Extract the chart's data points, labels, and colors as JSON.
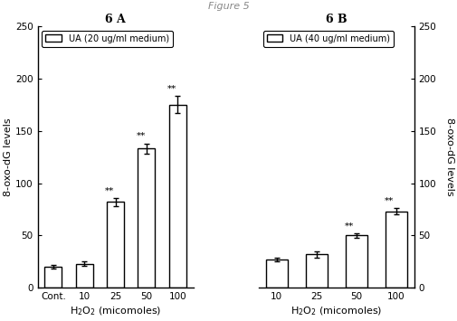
{
  "panel_A": {
    "title": "6 A",
    "legend_label": "UA (20 ug/ml medium)",
    "categories": [
      "Cont.",
      "10",
      "25",
      "50",
      "100"
    ],
    "values": [
      20,
      23,
      82,
      133,
      175
    ],
    "errors": [
      2,
      2,
      4,
      5,
      8
    ],
    "annotations": [
      "",
      "",
      "**",
      "**",
      "**"
    ],
    "ann_offsets": [
      0,
      0,
      2,
      2,
      2
    ],
    "xlabel": "H$_2$O$_2$ (micomoles)",
    "ylabel": "8-oxo-dG levels",
    "ylim": [
      0,
      250
    ],
    "yticks": [
      0,
      50,
      100,
      150,
      200,
      250
    ]
  },
  "panel_B": {
    "title": "6 B",
    "legend_label": "UA (40 ug/ml medium)",
    "categories": [
      "10",
      "25",
      "50",
      "100"
    ],
    "values": [
      27,
      32,
      50,
      73
    ],
    "errors": [
      2,
      3,
      2,
      3
    ],
    "annotations": [
      "",
      "",
      "**",
      "**"
    ],
    "ann_offsets": [
      0,
      0,
      2,
      2
    ],
    "xlabel": "H$_2$O$_2$ (micomoles)",
    "ylabel": "8-oxo-dG levels",
    "ylim": [
      0,
      250
    ],
    "yticks": [
      0,
      50,
      100,
      150,
      200,
      250
    ]
  },
  "bar_color": "#ffffff",
  "bar_edgecolor": "#000000",
  "bar_width": 0.55,
  "background_color": "#ffffff",
  "title_fontsize": 9,
  "label_fontsize": 8,
  "tick_fontsize": 7.5,
  "annotation_fontsize": 7.5,
  "legend_fontsize": 7
}
